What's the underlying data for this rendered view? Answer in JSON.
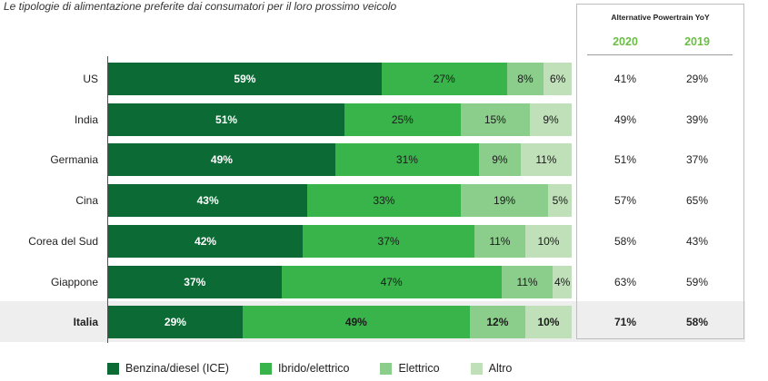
{
  "header": {
    "subtitle": "Le tipologie di alimentazione preferite dai consumatori per il loro prossimo veicolo"
  },
  "yoy": {
    "title": "Alternative Powertrain YoY",
    "year_2020": "2020",
    "year_2019": "2019"
  },
  "colors": {
    "ice": "#0c6b35",
    "hybrid": "#39b44a",
    "electric": "#8bcd8b",
    "other": "#bfe0b8",
    "year_accent": "#6cbd45"
  },
  "chart_data": {
    "type": "bar",
    "orientation": "horizontal",
    "stacked": true,
    "xlim": [
      0,
      100
    ],
    "categories": [
      "US",
      "India",
      "Germania",
      "Cina",
      "Corea del Sud",
      "Giappone",
      "Italia"
    ],
    "series": [
      {
        "name": "Benzina/diesel (ICE)",
        "values": [
          59,
          51,
          49,
          43,
          42,
          37,
          29
        ]
      },
      {
        "name": "Ibrido/elettrico",
        "values": [
          27,
          25,
          31,
          33,
          37,
          47,
          49
        ]
      },
      {
        "name": "Elettrico",
        "values": [
          8,
          15,
          9,
          19,
          11,
          11,
          12
        ]
      },
      {
        "name": "Altro",
        "values": [
          6,
          9,
          11,
          5,
          10,
          4,
          10
        ]
      }
    ],
    "yoy_2020": [
      "41%",
      "49%",
      "51%",
      "57%",
      "58%",
      "63%",
      "71%"
    ],
    "yoy_2019": [
      "29%",
      "39%",
      "37%",
      "65%",
      "43%",
      "59%",
      "58%"
    ],
    "highlight_category": "Italia",
    "legend_position": "bottom"
  }
}
